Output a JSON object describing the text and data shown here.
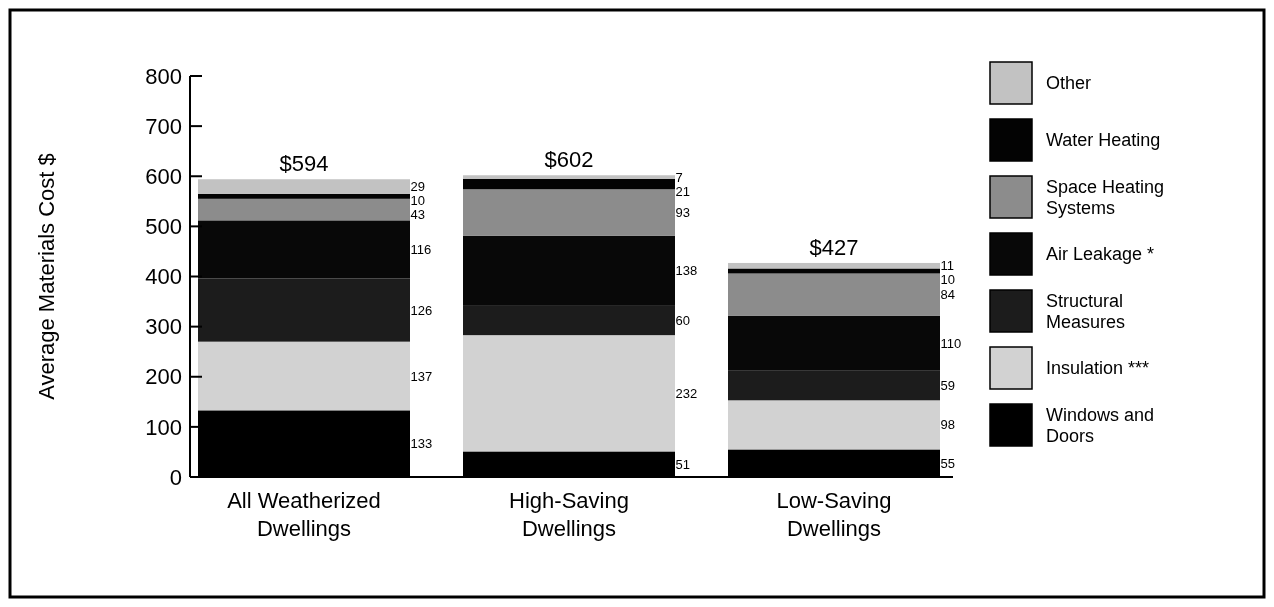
{
  "chart_data": {
    "type": "bar",
    "stacked": true,
    "ylabel": "Average Materials Cost $",
    "categories": [
      "All Weatherized Dwellings",
      "High-Saving Dwellings",
      "Low-Saving Dwellings"
    ],
    "series": [
      {
        "name": "Windows and Doors",
        "color": "#000000",
        "values": [
          133,
          51,
          55
        ]
      },
      {
        "name": "Insulation ***",
        "color": "#d2d2d2",
        "values": [
          137,
          232,
          98
        ]
      },
      {
        "name": "Structural Measures",
        "color": "#1c1c1c",
        "values": [
          126,
          60,
          59
        ]
      },
      {
        "name": "Air Leakage *",
        "color": "#080808",
        "values": [
          116,
          138,
          110
        ]
      },
      {
        "name": "Space Heating Systems",
        "color": "#8c8c8c",
        "values": [
          43,
          93,
          84
        ]
      },
      {
        "name": "Water Heating",
        "color": "#030303",
        "values": [
          10,
          21,
          10
        ]
      },
      {
        "name": "Other",
        "color": "#c2c2c2",
        "values": [
          29,
          7,
          11
        ]
      }
    ],
    "totals": [
      "$594",
      "$602",
      "$427"
    ],
    "ylim": [
      0,
      800
    ],
    "yticks": [
      0,
      100,
      200,
      300,
      400,
      500,
      600,
      700,
      800
    ],
    "grid": false,
    "legend": "right",
    "data_labels": true
  }
}
